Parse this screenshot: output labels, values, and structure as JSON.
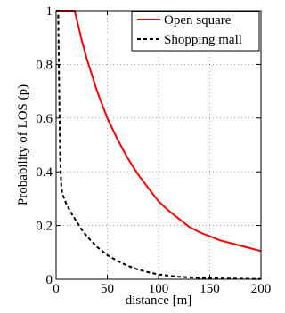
{
  "chart_data": {
    "type": "line",
    "xlabel": "distance [m]",
    "ylabel": "Probability of LOS (p)",
    "xlim": [
      0,
      200
    ],
    "ylim": [
      0,
      1
    ],
    "x_ticks": [
      0,
      50,
      100,
      150,
      200
    ],
    "y_ticks": [
      0,
      0.2,
      0.4,
      0.6,
      0.8,
      1
    ],
    "grid": true,
    "legend_position": "top-right",
    "series": [
      {
        "name": "Open square",
        "color": "#ff0000",
        "style": "solid",
        "x": [
          0,
          10,
          18,
          20,
          25,
          30,
          40,
          50,
          60,
          70,
          80,
          90,
          100,
          110,
          120,
          130,
          140,
          150,
          160,
          170,
          180,
          190,
          200
        ],
        "y": [
          1,
          1,
          1,
          0.97,
          0.89,
          0.82,
          0.7,
          0.6,
          0.52,
          0.45,
          0.39,
          0.34,
          0.29,
          0.255,
          0.225,
          0.195,
          0.175,
          0.16,
          0.145,
          0.135,
          0.125,
          0.115,
          0.105
        ]
      },
      {
        "name": "Shopping mall",
        "color": "#000000",
        "style": "dashed",
        "x": [
          0,
          2,
          3,
          4,
          5,
          6,
          8,
          10,
          15,
          20,
          25,
          30,
          40,
          50,
          60,
          70,
          80,
          90,
          100,
          110,
          120,
          140,
          160,
          180,
          200
        ],
        "y": [
          1,
          1,
          0.7,
          0.45,
          0.35,
          0.32,
          0.3,
          0.28,
          0.245,
          0.215,
          0.185,
          0.16,
          0.12,
          0.09,
          0.068,
          0.05,
          0.036,
          0.026,
          0.018,
          0.013,
          0.009,
          0.005,
          0.003,
          0.002,
          0.001
        ]
      }
    ]
  }
}
